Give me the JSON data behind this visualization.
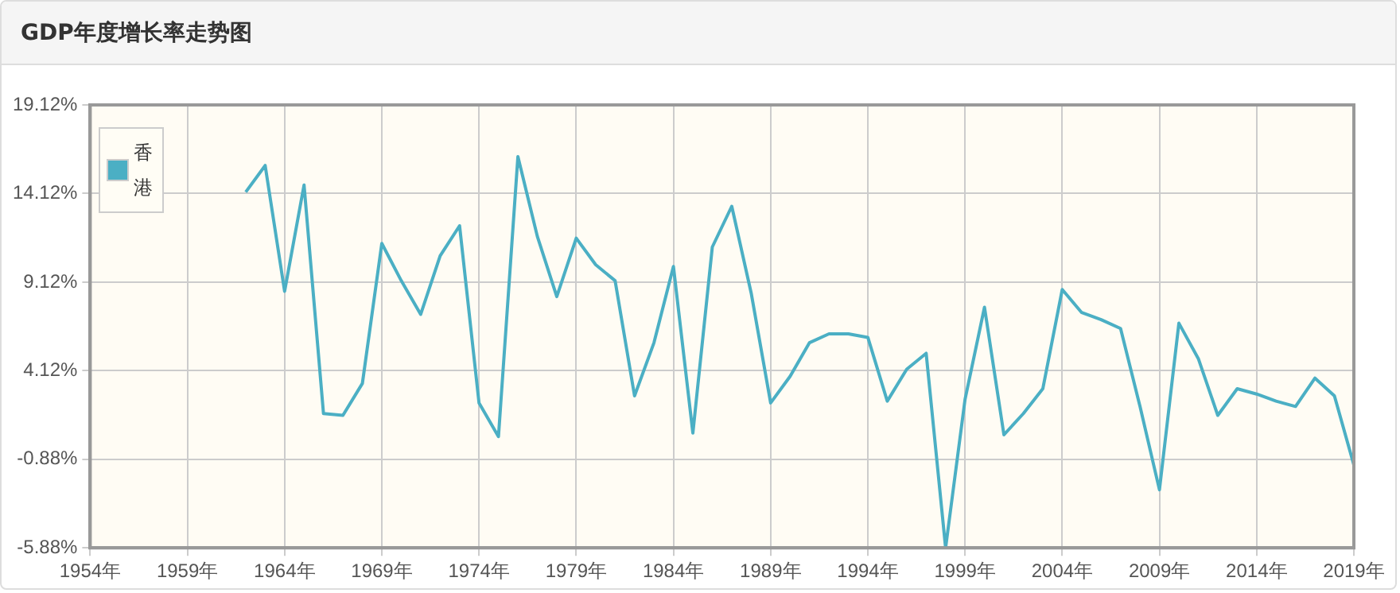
{
  "chart_data": {
    "type": "line",
    "title": "GDP年度增长率走势图",
    "x": [
      1962,
      1963,
      1964,
      1965,
      1966,
      1967,
      1968,
      1969,
      1970,
      1971,
      1972,
      1973,
      1974,
      1975,
      1976,
      1977,
      1978,
      1979,
      1980,
      1981,
      1982,
      1983,
      1984,
      1985,
      1986,
      1987,
      1988,
      1989,
      1990,
      1991,
      1992,
      1993,
      1994,
      1995,
      1996,
      1997,
      1998,
      1999,
      2000,
      2001,
      2002,
      2003,
      2004,
      2005,
      2006,
      2007,
      2008,
      2009,
      2010,
      2011,
      2012,
      2013,
      2014,
      2015,
      2016,
      2017,
      2018,
      2019
    ],
    "series": [
      {
        "name": "香港",
        "color": "#4bafc4",
        "values": [
          14.2,
          15.7,
          8.6,
          14.6,
          1.7,
          1.6,
          3.4,
          11.3,
          9.2,
          7.3,
          10.6,
          12.3,
          2.3,
          0.4,
          16.2,
          11.7,
          8.3,
          11.6,
          10.1,
          9.2,
          2.7,
          5.7,
          10.0,
          0.6,
          11.1,
          13.4,
          8.5,
          2.3,
          3.8,
          5.7,
          6.2,
          6.2,
          6.0,
          2.4,
          4.2,
          5.1,
          -5.88,
          2.5,
          7.7,
          0.5,
          1.7,
          3.1,
          8.7,
          7.4,
          7.0,
          6.5,
          2.1,
          -2.6,
          6.8,
          4.8,
          1.6,
          3.1,
          2.8,
          2.4,
          2.1,
          3.7,
          2.7,
          -1.2
        ]
      }
    ],
    "xlim": [
      1954,
      2019
    ],
    "xticks": [
      {
        "value": 1954,
        "label": "1954年"
      },
      {
        "value": 1959,
        "label": "1959年"
      },
      {
        "value": 1964,
        "label": "1964年"
      },
      {
        "value": 1969,
        "label": "1969年"
      },
      {
        "value": 1974,
        "label": "1974年"
      },
      {
        "value": 1979,
        "label": "1979年"
      },
      {
        "value": 1984,
        "label": "1984年"
      },
      {
        "value": 1989,
        "label": "1989年"
      },
      {
        "value": 1994,
        "label": "1994年"
      },
      {
        "value": 1999,
        "label": "1999年"
      },
      {
        "value": 2004,
        "label": "2004年"
      },
      {
        "value": 2009,
        "label": "2009年"
      },
      {
        "value": 2014,
        "label": "2014年"
      },
      {
        "value": 2019,
        "label": "2019年"
      }
    ],
    "ylim": [
      -5.88,
      19.12
    ],
    "yticks": [
      {
        "value": -5.88,
        "label": "-5.88%"
      },
      {
        "value": -0.88,
        "label": "-0.88%"
      },
      {
        "value": 4.12,
        "label": "4.12%"
      },
      {
        "value": 9.12,
        "label": "9.12%"
      },
      {
        "value": 14.12,
        "label": "14.12%"
      },
      {
        "value": 19.12,
        "label": "19.12%"
      }
    ],
    "grid": true,
    "legend": "top left",
    "marker": "none",
    "line_style": "solid"
  }
}
